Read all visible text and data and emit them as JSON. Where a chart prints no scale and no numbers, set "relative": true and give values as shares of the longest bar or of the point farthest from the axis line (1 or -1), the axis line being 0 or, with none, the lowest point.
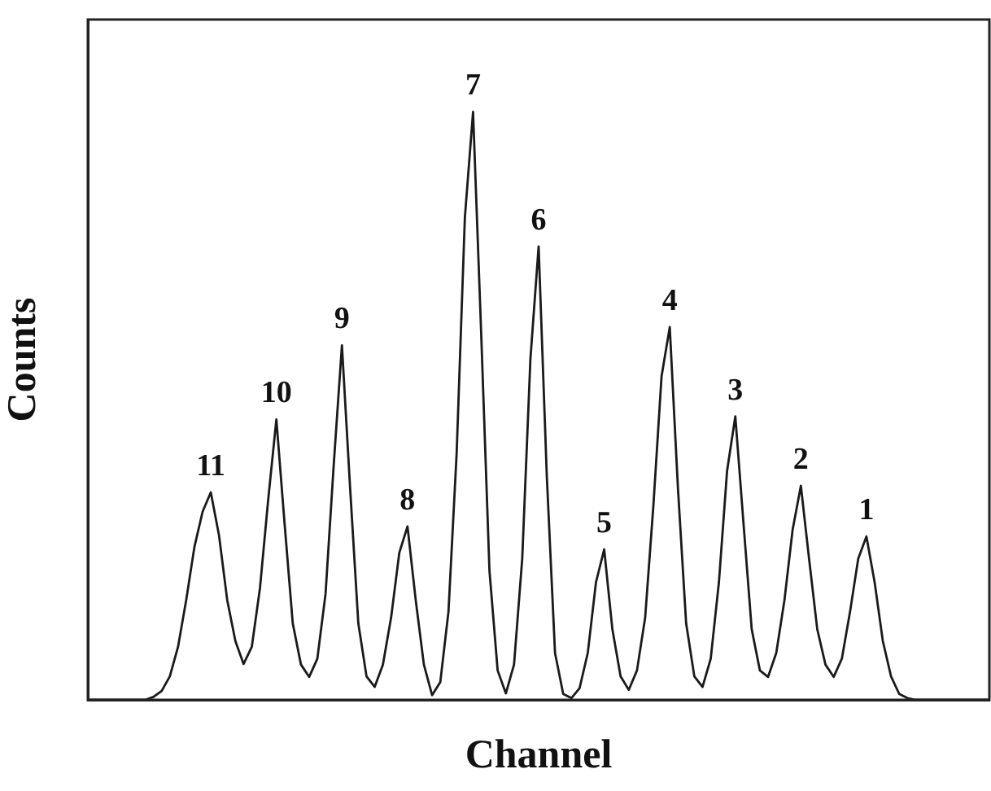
{
  "chart_data": {
    "type": "line",
    "relative": true,
    "xlabel": "Channel",
    "ylabel": "Counts",
    "color": "#1a1a1a",
    "legend": false,
    "grid": false,
    "marker": "none",
    "categories": [
      null,
      null,
      null,
      null,
      null,
      null,
      null,
      null,
      null,
      null,
      null,
      null,
      null,
      null,
      null,
      null,
      null,
      null,
      null,
      null,
      null,
      null,
      null,
      null,
      null,
      null,
      null,
      null,
      null,
      null,
      null,
      null,
      null,
      null,
      null,
      null,
      null,
      null,
      null,
      null,
      null,
      null,
      null,
      null,
      null,
      null,
      null,
      null,
      null,
      null,
      null,
      null,
      null,
      null,
      null,
      null,
      null,
      null,
      null,
      null,
      null,
      null,
      null,
      null,
      null,
      null,
      null,
      null,
      null,
      null,
      null,
      null,
      null,
      null,
      null,
      null,
      null,
      null,
      null,
      null,
      null,
      null,
      null,
      null,
      null,
      null,
      null,
      null,
      null,
      null,
      null,
      null,
      null,
      null,
      null,
      null,
      null,
      null,
      null,
      null,
      null,
      null,
      null,
      null,
      null,
      null,
      null,
      null,
      null,
      null,
      null
    ],
    "values": [
      0,
      0,
      0,
      0,
      0,
      0,
      0,
      0,
      0.005,
      0.015,
      0.04,
      0.09,
      0.17,
      0.26,
      0.32,
      0.353,
      0.28,
      0.17,
      0.1,
      0.061,
      0.09,
      0.19,
      0.34,
      0.477,
      0.3,
      0.13,
      0.06,
      0.039,
      0.07,
      0.18,
      0.4,
      0.603,
      0.36,
      0.13,
      0.04,
      0.022,
      0.06,
      0.14,
      0.25,
      0.295,
      0.17,
      0.06,
      0.008,
      0.03,
      0.15,
      0.42,
      0.82,
      1,
      0.62,
      0.22,
      0.05,
      0.011,
      0.06,
      0.24,
      0.58,
      0.771,
      0.38,
      0.08,
      0.01,
      0.003,
      0.02,
      0.08,
      0.2,
      0.256,
      0.12,
      0.04,
      0.017,
      0.05,
      0.14,
      0.33,
      0.55,
      0.634,
      0.36,
      0.13,
      0.04,
      0.022,
      0.07,
      0.2,
      0.39,
      0.482,
      0.3,
      0.12,
      0.05,
      0.039,
      0.08,
      0.17,
      0.29,
      0.364,
      0.24,
      0.12,
      0.06,
      0.039,
      0.07,
      0.15,
      0.24,
      0.278,
      0.2,
      0.1,
      0.04,
      0.01,
      0.003,
      0,
      0,
      0,
      0,
      0,
      0,
      0,
      0,
      0,
      0
    ],
    "annotations": [
      "11",
      "10",
      "9",
      "8",
      "7",
      "6",
      "5",
      "4",
      "3",
      "2",
      "1"
    ]
  }
}
